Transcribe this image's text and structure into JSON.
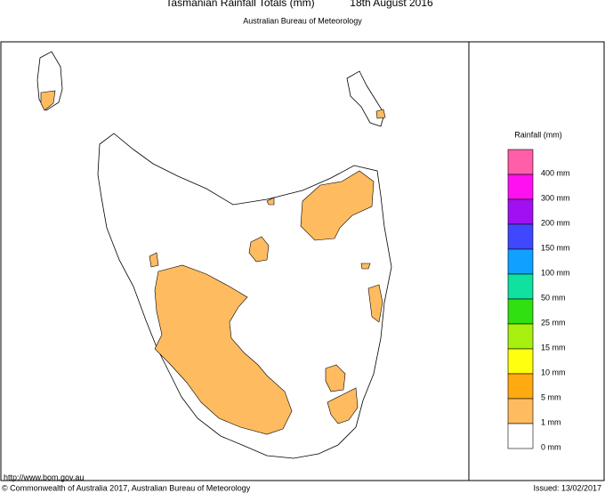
{
  "header": {
    "title": "Tasmanian Rainfall Totals (mm)",
    "date": "18th August 2016",
    "subtitle": "Australian Bureau of Meteorology"
  },
  "legend": {
    "title": "Rainfall (mm)",
    "colors": [
      "#ff5fa8",
      "#ff10f0",
      "#a010f0",
      "#4048ff",
      "#10a0ff",
      "#10e0a0",
      "#30e010",
      "#a8f010",
      "#ffff10",
      "#ffaa10",
      "#ffbb60",
      "#ffffff"
    ],
    "labels": [
      "400 mm",
      "300 mm",
      "200 mm",
      "150 mm",
      "100 mm",
      "50 mm",
      "25 mm",
      "15 mm",
      "10 mm",
      "5 mm",
      "1 mm",
      "0 mm"
    ]
  },
  "footer": {
    "url": "http://www.bom.gov.au",
    "copyright": "© Commonwealth of Australia 2017, Australian Bureau of Meteorology",
    "issued": "Issued: 13/02/2017"
  }
}
